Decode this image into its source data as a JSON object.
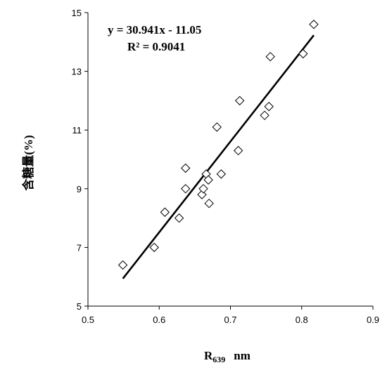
{
  "chart_data": {
    "type": "scatter",
    "xlabel": "R",
    "xlabel_sub": "639",
    "xlabel_unit": "nm",
    "ylabel": "含糖量(%)",
    "xlim": [
      0.5,
      0.9
    ],
    "ylim": [
      5,
      15
    ],
    "xticks": [
      0.5,
      0.6,
      0.7,
      0.8,
      0.9
    ],
    "yticks": [
      5,
      7,
      9,
      11,
      13,
      15
    ],
    "xtick_labels": [
      "0.5",
      "0.6",
      "0.7",
      "0.8",
      "0.9"
    ],
    "ytick_labels": [
      "5",
      "7",
      "9",
      "11",
      "13",
      "15"
    ],
    "grid": false,
    "marker": "diamond-open",
    "points": [
      {
        "x": 0.549,
        "y": 6.4
      },
      {
        "x": 0.593,
        "y": 7.0
      },
      {
        "x": 0.608,
        "y": 8.2
      },
      {
        "x": 0.628,
        "y": 8.0
      },
      {
        "x": 0.637,
        "y": 9.7
      },
      {
        "x": 0.637,
        "y": 9.0
      },
      {
        "x": 0.66,
        "y": 8.8
      },
      {
        "x": 0.662,
        "y": 9.0
      },
      {
        "x": 0.666,
        "y": 9.5
      },
      {
        "x": 0.669,
        "y": 9.3
      },
      {
        "x": 0.67,
        "y": 8.5
      },
      {
        "x": 0.681,
        "y": 11.1
      },
      {
        "x": 0.687,
        "y": 9.5
      },
      {
        "x": 0.711,
        "y": 10.3
      },
      {
        "x": 0.713,
        "y": 12.0
      },
      {
        "x": 0.748,
        "y": 11.5
      },
      {
        "x": 0.754,
        "y": 11.8
      },
      {
        "x": 0.756,
        "y": 13.5
      },
      {
        "x": 0.802,
        "y": 13.6
      },
      {
        "x": 0.817,
        "y": 14.6
      }
    ],
    "trendline": {
      "slope": 30.941,
      "intercept": -11.05,
      "x_range": [
        0.549,
        0.817
      ],
      "equation_label": "y = 30.941x - 11.05",
      "r2_label": "R² = 0.9041"
    }
  }
}
